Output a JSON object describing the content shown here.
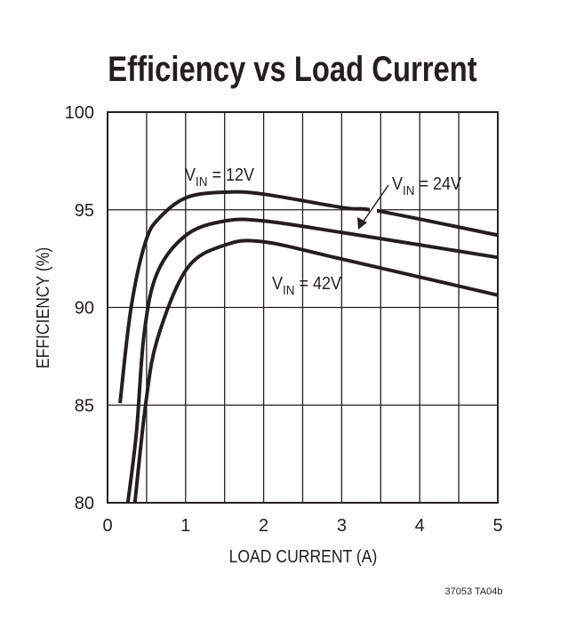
{
  "chart_data": {
    "type": "line",
    "title": "Efficiency vs Load Current",
    "xlabel": "LOAD CURRENT (A)",
    "ylabel": "EFFICIENCY (%)",
    "xlim": [
      0,
      5
    ],
    "ylim": [
      80,
      100
    ],
    "xticks": [
      "0",
      "1",
      "2",
      "3",
      "4",
      "5"
    ],
    "yticks": [
      "80",
      "85",
      "90",
      "95",
      "100"
    ],
    "grid": true,
    "grid_x_step": 0.5,
    "grid_y_step": 5,
    "legend": "none (curves labeled in-plot)",
    "line_color": "#231f20",
    "series": [
      {
        "label": {
          "main": "V",
          "sub": "IN",
          "rest": " = 12V"
        },
        "points": [
          [
            0.16,
            85.1
          ],
          [
            0.3,
            89.95
          ],
          [
            0.49,
            93.4
          ],
          [
            0.68,
            94.65
          ],
          [
            1.02,
            95.64
          ],
          [
            1.51,
            95.9
          ],
          [
            2.0,
            95.8
          ],
          [
            3.03,
            95.1
          ],
          [
            3.48,
            94.93
          ],
          [
            5.0,
            93.7
          ]
        ]
      },
      {
        "label": {
          "main": "V",
          "sub": "IN",
          "rest": " = 24V"
        },
        "points": [
          [
            0.26,
            80.0
          ],
          [
            0.37,
            83.6
          ],
          [
            0.47,
            88.7
          ],
          [
            0.64,
            91.8
          ],
          [
            1.02,
            93.74
          ],
          [
            1.51,
            94.43
          ],
          [
            2.0,
            94.43
          ],
          [
            3.03,
            93.82
          ],
          [
            5.0,
            92.56
          ]
        ]
      },
      {
        "label": {
          "main": "V",
          "sub": "IN",
          "rest": " = 42V"
        },
        "points": [
          [
            0.35,
            80.0
          ],
          [
            0.49,
            85.1
          ],
          [
            0.64,
            88.4
          ],
          [
            1.02,
            92.0
          ],
          [
            1.51,
            93.2
          ],
          [
            2.0,
            93.36
          ],
          [
            3.03,
            92.45
          ],
          [
            5.0,
            90.63
          ]
        ]
      }
    ]
  },
  "footer_code": "37053 TA04b"
}
